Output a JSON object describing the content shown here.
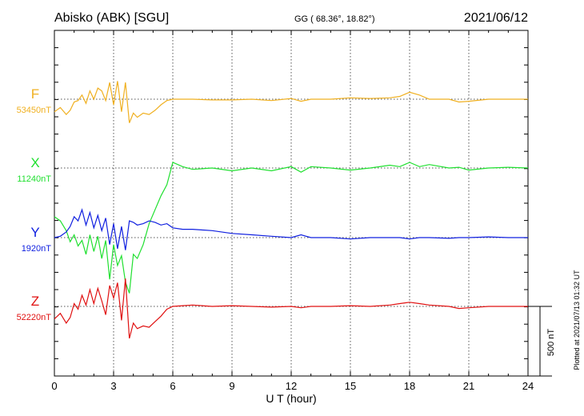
{
  "header": {
    "station": "Abisko (ABK)  [SGU]",
    "coords": "GG ( 68.36°,  18.82°)",
    "date": "2021/06/12"
  },
  "side_note": "Plotted at 2021/07/13 01:32 UT",
  "scale_bar": {
    "label": "500 nT",
    "value_nT": 500
  },
  "chart_data": {
    "type": "line",
    "xlabel": "U T (hour)",
    "ylabel": "",
    "xlim": [
      0,
      24
    ],
    "x_ticks": [
      0,
      3,
      6,
      9,
      12,
      15,
      18,
      21,
      24
    ],
    "grid": true,
    "series": [
      {
        "name": "F",
        "baseline_label": "53450nT",
        "baseline_nT": 53450,
        "color": "#f0b020",
        "x": [
          0,
          0.3,
          0.6,
          0.8,
          1.0,
          1.2,
          1.4,
          1.6,
          1.8,
          2.0,
          2.2,
          2.4,
          2.6,
          2.8,
          3.0,
          3.2,
          3.4,
          3.6,
          3.8,
          4.0,
          4.2,
          4.5,
          4.8,
          5.1,
          5.4,
          5.7,
          6.0,
          6.5,
          7,
          8,
          9,
          10,
          11,
          12,
          12.5,
          13,
          14,
          15,
          16,
          17,
          17.5,
          18,
          18.5,
          19,
          20,
          20.5,
          21,
          22,
          23,
          24
        ],
        "y": [
          -90,
          -60,
          -110,
          -80,
          -20,
          -10,
          30,
          -30,
          60,
          0,
          80,
          60,
          -10,
          120,
          -40,
          130,
          -90,
          120,
          -170,
          -100,
          -130,
          -100,
          -110,
          -80,
          -40,
          -10,
          0,
          0,
          0,
          -5,
          -5,
          0,
          -10,
          5,
          -15,
          0,
          0,
          10,
          5,
          10,
          20,
          50,
          30,
          0,
          0,
          -20,
          -15,
          0,
          0,
          0
        ]
      },
      {
        "name": "X",
        "baseline_label": "11240nT",
        "baseline_nT": 11240,
        "color": "#20e030",
        "x": [
          0,
          0.3,
          0.6,
          0.8,
          1.0,
          1.2,
          1.4,
          1.6,
          1.8,
          2.0,
          2.2,
          2.4,
          2.6,
          2.8,
          3.0,
          3.2,
          3.4,
          3.6,
          3.8,
          4.0,
          4.2,
          4.5,
          4.8,
          5.1,
          5.4,
          5.7,
          6.0,
          6.5,
          7,
          8,
          9,
          10,
          11,
          12,
          12.5,
          13,
          14,
          15,
          16,
          17,
          17.5,
          18,
          18.5,
          19,
          20,
          20.5,
          21,
          22,
          23,
          24
        ],
        "y": [
          -350,
          -380,
          -450,
          -530,
          -480,
          -560,
          -520,
          -620,
          -480,
          -600,
          -490,
          -650,
          -520,
          -800,
          -550,
          -700,
          -630,
          -820,
          -900,
          -620,
          -650,
          -550,
          -400,
          -300,
          -200,
          -120,
          40,
          10,
          -10,
          0,
          -20,
          0,
          -20,
          10,
          -30,
          10,
          0,
          -15,
          0,
          20,
          10,
          40,
          10,
          25,
          0,
          5,
          -15,
          0,
          5,
          0
        ]
      },
      {
        "name": "Y",
        "baseline_label": "1920nT",
        "baseline_nT": 1920,
        "color": "#1020e0",
        "x": [
          0,
          0.3,
          0.6,
          0.8,
          1.0,
          1.2,
          1.4,
          1.6,
          1.8,
          2.0,
          2.2,
          2.4,
          2.6,
          2.8,
          3.0,
          3.2,
          3.4,
          3.6,
          3.8,
          4.0,
          4.2,
          4.5,
          4.8,
          5.1,
          5.4,
          5.7,
          6.0,
          6.5,
          7,
          8,
          9,
          10,
          11,
          12,
          12.5,
          13,
          14,
          15,
          16,
          17,
          17.5,
          18,
          18.5,
          19,
          20,
          20.5,
          21,
          22,
          23,
          24
        ],
        "y": [
          0,
          10,
          40,
          80,
          150,
          120,
          200,
          90,
          180,
          70,
          160,
          50,
          140,
          -50,
          100,
          -80,
          80,
          -90,
          120,
          110,
          90,
          100,
          120,
          110,
          90,
          100,
          70,
          60,
          60,
          50,
          30,
          20,
          10,
          0,
          20,
          0,
          0,
          -10,
          0,
          0,
          0,
          -10,
          0,
          0,
          -5,
          0,
          0,
          5,
          0,
          0
        ]
      },
      {
        "name": "Z",
        "baseline_label": "52220nT",
        "baseline_nT": 52220,
        "color": "#e01010",
        "x": [
          0,
          0.3,
          0.6,
          0.8,
          1.0,
          1.2,
          1.4,
          1.6,
          1.8,
          2.0,
          2.2,
          2.4,
          2.6,
          2.8,
          3.0,
          3.2,
          3.4,
          3.6,
          3.8,
          4.0,
          4.2,
          4.5,
          4.8,
          5.1,
          5.4,
          5.7,
          6.0,
          6.5,
          7,
          8,
          9,
          10,
          11,
          12,
          12.5,
          13,
          14,
          15,
          16,
          17,
          17.5,
          18,
          18.5,
          19,
          20,
          20.5,
          21,
          22,
          23,
          24
        ],
        "y": [
          -90,
          -50,
          -120,
          -80,
          20,
          -20,
          80,
          10,
          120,
          20,
          130,
          40,
          -60,
          150,
          60,
          170,
          -100,
          200,
          -230,
          -120,
          -160,
          -140,
          -150,
          -110,
          -70,
          -20,
          0,
          5,
          10,
          0,
          5,
          0,
          -5,
          0,
          -10,
          0,
          0,
          5,
          0,
          10,
          20,
          30,
          20,
          10,
          0,
          -15,
          -10,
          0,
          0,
          0
        ]
      }
    ]
  }
}
